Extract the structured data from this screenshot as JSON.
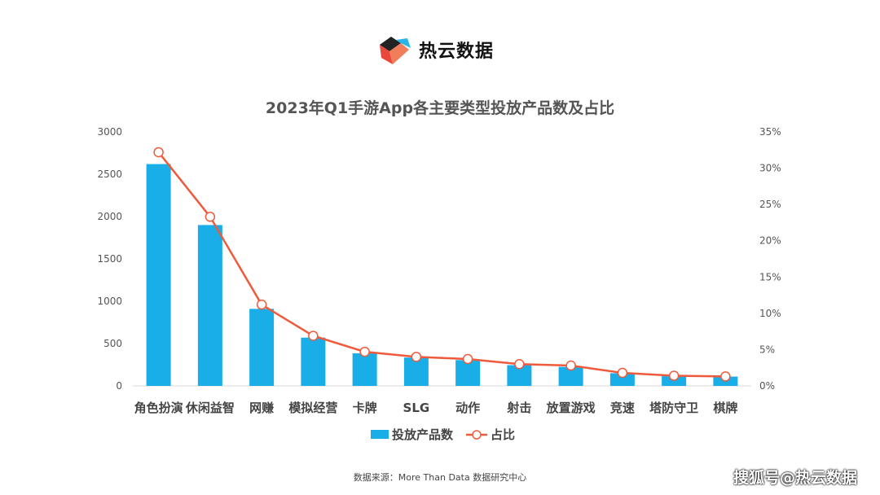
{
  "brand": {
    "name": "热云数据",
    "logo_icon": "reyun-logo-icon"
  },
  "colors": {
    "bar": "#1aaee8",
    "line": "#f05a3c",
    "axis_text": "#555555",
    "title": "#555555"
  },
  "footer": {
    "source": "数据来源：More Than Data 数据研究中心"
  },
  "watermark": "搜狐号@热云数据",
  "chart_data": {
    "type": "bar",
    "title": "2023年Q1手游App各主要类型投放产品数及占比",
    "xlabel": "",
    "ylabel": "",
    "categories": [
      "角色扮演",
      "休闲益智",
      "网赚",
      "模拟经营",
      "卡牌",
      "SLG",
      "动作",
      "射击",
      "放置游戏",
      "竞速",
      "塔防守卫",
      "棋牌"
    ],
    "series": [
      {
        "name": "投放产品数",
        "type": "bar",
        "axis": "left",
        "values": [
          2620,
          1900,
          910,
          570,
          385,
          335,
          305,
          245,
          225,
          150,
          115,
          110
        ]
      },
      {
        "name": "占比",
        "type": "line",
        "axis": "right",
        "values": [
          32.2,
          23.3,
          11.2,
          6.9,
          4.7,
          4.0,
          3.7,
          3.0,
          2.8,
          1.8,
          1.4,
          1.3
        ]
      }
    ],
    "ylim_left": [
      0,
      3000
    ],
    "yticks_left": [
      "0",
      "500",
      "1000",
      "1500",
      "2000",
      "2500",
      "3000"
    ],
    "ylim_right": [
      0,
      35
    ],
    "yticks_right": [
      "0%",
      "5%",
      "10%",
      "15%",
      "20%",
      "25%",
      "30%",
      "35%"
    ],
    "grid": false,
    "legend": {
      "position": "bottom",
      "entries": [
        "投放产品数",
        "占比"
      ]
    }
  }
}
